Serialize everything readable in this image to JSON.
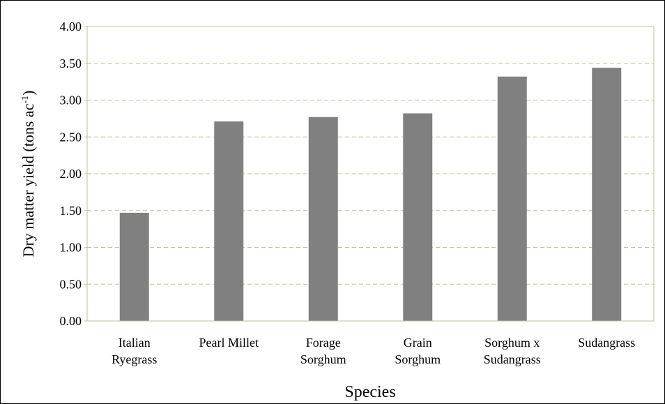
{
  "chart_data": {
    "type": "bar",
    "x_label": "Species",
    "y_label": {
      "text": "Dry matter yield (tons ac",
      "superscript": "-1",
      "suffix": ")"
    },
    "categories": [
      [
        "Italian",
        "Ryegrass"
      ],
      [
        "Pearl Millet"
      ],
      [
        "Forage",
        "Sorghum"
      ],
      [
        "Grain",
        "Sorghum"
      ],
      [
        "Sorghum x",
        "Sudangrass"
      ],
      [
        "Sudangrass"
      ]
    ],
    "values": [
      1.47,
      2.71,
      2.77,
      2.82,
      3.32,
      3.44
    ],
    "color": "#808080",
    "ylim": [
      0,
      4
    ],
    "yticks": [
      {
        "value": 0,
        "label": "0.00"
      },
      {
        "value": 0.5,
        "label": "0.50"
      },
      {
        "value": 1,
        "label": "1.00"
      },
      {
        "value": 1.5,
        "label": "1.50"
      },
      {
        "value": 2,
        "label": "2.00"
      },
      {
        "value": 2.5,
        "label": "2.50"
      },
      {
        "value": 3,
        "label": "3.00"
      },
      {
        "value": 3.5,
        "label": "3.50"
      },
      {
        "value": 4,
        "label": "4.00"
      }
    ],
    "grid": true
  }
}
